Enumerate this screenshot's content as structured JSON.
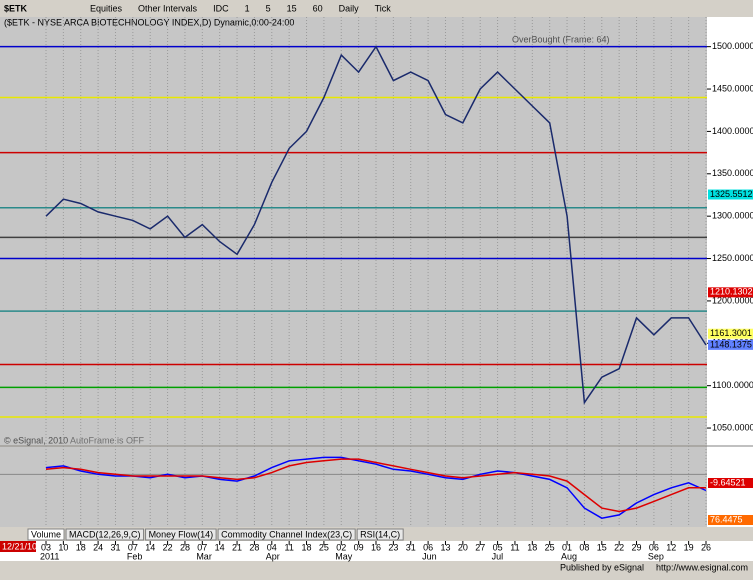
{
  "toolbar": {
    "symbol": "$ETK",
    "items": [
      "Equities",
      "Other Intervals",
      "IDC",
      "1",
      "5",
      "15",
      "60",
      "Daily",
      "Tick"
    ]
  },
  "chart_data": {
    "type": "line",
    "title": "($ETK - NYSE ARCA BIOTECHNOLOGY INDEX,D) Dynamic,0:00-24:00",
    "annotations": [
      "OverBought (Frame: 64)",
      "AutoFrame is OFF",
      "© eSignal, 2010"
    ],
    "categories": [
      "03",
      "10",
      "18",
      "24",
      "31",
      "07",
      "14",
      "22",
      "28",
      "07",
      "14",
      "21",
      "28",
      "04",
      "11",
      "18",
      "25",
      "02",
      "09",
      "16",
      "23",
      "31",
      "06",
      "13",
      "20",
      "27",
      "05",
      "11",
      "18",
      "25",
      "01",
      "08",
      "15",
      "22",
      "29",
      "06",
      "12",
      "19",
      "26"
    ],
    "months": [
      {
        "index": 0,
        "label": "2011"
      },
      {
        "index": 5,
        "label": "Feb"
      },
      {
        "index": 9,
        "label": "Mar"
      },
      {
        "index": 13,
        "label": "Apr"
      },
      {
        "index": 17,
        "label": "May"
      },
      {
        "index": 22,
        "label": "Jun"
      },
      {
        "index": 26,
        "label": "Jul"
      },
      {
        "index": 30,
        "label": "Aug"
      },
      {
        "index": 35,
        "label": "Sep"
      }
    ],
    "start_date": "12/21/10",
    "series": [
      {
        "name": "$ETK",
        "color": "#1a2a6c",
        "values": [
          1300,
          1320,
          1315,
          1305,
          1300,
          1295,
          1285,
          1300,
          1275,
          1290,
          1270,
          1255,
          1290,
          1340,
          1380,
          1400,
          1440,
          1490,
          1470,
          1500,
          1460,
          1470,
          1460,
          1420,
          1410,
          1450,
          1470,
          1450,
          1430,
          1410,
          1300,
          1080,
          1110,
          1120,
          1180,
          1160,
          1180,
          1180,
          1148
        ]
      }
    ],
    "levels": [
      {
        "value": 1500,
        "color": "#0000cc"
      },
      {
        "value": 1440,
        "color": "#e8e800"
      },
      {
        "value": 1375,
        "color": "#cc0000"
      },
      {
        "value": 1310,
        "color": "#2a8a8a"
      },
      {
        "value": 1275,
        "color": "#404040"
      },
      {
        "value": 1250,
        "color": "#0000cc"
      },
      {
        "value": 1188,
        "color": "#2a8a8a"
      },
      {
        "value": 1125,
        "color": "#cc0000"
      },
      {
        "value": 1098,
        "color": "#00a000"
      },
      {
        "value": 1063,
        "color": "#e8e800"
      }
    ],
    "price_labels": [
      {
        "value": 1325.5512,
        "color": "#00e0e0"
      },
      {
        "value": 1210.1302,
        "color": "#dd0000"
      },
      {
        "value": 1161.3001,
        "color": "#ffff60"
      },
      {
        "value": 1148.1375,
        "color": "#6080ff"
      }
    ],
    "ylim": [
      1030,
      1535
    ],
    "yticks": [
      {
        "value": 1050,
        "label": "1050.0000"
      },
      {
        "value": 1100,
        "label": "1100.0000"
      },
      {
        "value": 1150,
        "label": "1150.0000"
      },
      {
        "value": 1200,
        "label": "1200.0000"
      },
      {
        "value": 1250,
        "label": "1250.0000"
      },
      {
        "value": 1300,
        "label": "1300.0000"
      },
      {
        "value": 1350,
        "label": "1350.0000"
      },
      {
        "value": 1400,
        "label": "1400.0000"
      },
      {
        "value": 1450,
        "label": "1450.0000"
      },
      {
        "value": 1500,
        "label": "1500.0000"
      }
    ],
    "macd": {
      "ylim": [
        -30,
        15
      ],
      "series": [
        {
          "name": "MACD",
          "color": "#0000ff",
          "values": [
            4,
            5,
            2,
            0,
            -1,
            -1,
            -2,
            0,
            -2,
            -1,
            -3,
            -4,
            -1,
            4,
            8,
            9,
            10,
            10,
            8,
            6,
            3,
            2,
            0,
            -2,
            -3,
            0,
            2,
            1,
            -1,
            -3,
            -8,
            -20,
            -26,
            -24,
            -17,
            -12,
            -8,
            -5,
            -9.6
          ]
        },
        {
          "name": "Signal",
          "color": "#dd0000",
          "values": [
            3,
            4,
            3,
            1,
            0,
            -1,
            -1,
            -1,
            -1,
            -1,
            -2,
            -3,
            -2,
            1,
            5,
            7,
            8,
            9,
            9,
            7,
            5,
            3,
            1,
            -1,
            -2,
            -1,
            0,
            1,
            0,
            -1,
            -4,
            -12,
            -20,
            -22,
            -20,
            -16,
            -12,
            -8,
            -8
          ]
        }
      ],
      "readouts": [
        {
          "value": -9.64521,
          "color": "#dd0000"
        },
        {
          "value": 76.4475,
          "color": "#ff6a00"
        }
      ]
    }
  },
  "tabs": [
    "Volume",
    "MACD(12,26,9,C)",
    "Money Flow(14)",
    "Commodity Channel Index(23,C)",
    "RSI(14,C)"
  ],
  "footer": {
    "publisher": "Published by eSignal",
    "url": "http://www.esignal.com"
  }
}
